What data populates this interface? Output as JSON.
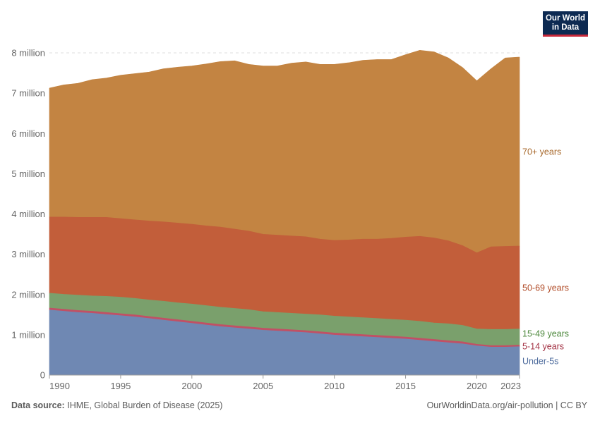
{
  "logo": {
    "line1": "Our World",
    "line2": "in Data"
  },
  "footer": {
    "source_label": "Data source:",
    "source_text": "IHME, Global Burden of Disease (2025)",
    "right_text": "OurWorldinData.org/air-pollution | CC BY"
  },
  "colors": {
    "under5": "#6f88b3",
    "age5_14": "#c15065",
    "age15_49": "#7aa06c",
    "age50_69": "#c25e3a",
    "age70": "#c38442"
  },
  "chart_data": {
    "type": "area",
    "stacked": true,
    "x": [
      1990,
      1991,
      1992,
      1993,
      1994,
      1995,
      1996,
      1997,
      1998,
      1999,
      2000,
      2001,
      2002,
      2003,
      2004,
      2005,
      2006,
      2007,
      2008,
      2009,
      2010,
      2011,
      2012,
      2013,
      2014,
      2015,
      2016,
      2017,
      2018,
      2019,
      2020,
      2021,
      2022,
      2023
    ],
    "x_ticks": [
      1990,
      1995,
      2000,
      2005,
      2010,
      2015,
      2020,
      2023
    ],
    "xlim": [
      1990,
      2023
    ],
    "ylim": [
      0,
      8000000
    ],
    "y_ticks": [
      {
        "value": 0,
        "label": "0"
      },
      {
        "value": 1000000,
        "label": "1 million"
      },
      {
        "value": 2000000,
        "label": "2 million"
      },
      {
        "value": 3000000,
        "label": "3 million"
      },
      {
        "value": 4000000,
        "label": "4 million"
      },
      {
        "value": 5000000,
        "label": "5 million"
      },
      {
        "value": 6000000,
        "label": "6 million"
      },
      {
        "value": 7000000,
        "label": "7 million"
      },
      {
        "value": 8000000,
        "label": "8 million"
      }
    ],
    "grid": "horizontal dashed",
    "series": [
      {
        "name": "Under-5s",
        "color_key": "under5",
        "values": [
          1610000,
          1580000,
          1550000,
          1530000,
          1500000,
          1470000,
          1440000,
          1400000,
          1360000,
          1320000,
          1280000,
          1240000,
          1200000,
          1170000,
          1140000,
          1110000,
          1090000,
          1070000,
          1050000,
          1020000,
          990000,
          970000,
          950000,
          930000,
          910000,
          890000,
          860000,
          830000,
          800000,
          770000,
          720000,
          690000,
          690000,
          700000
        ]
      },
      {
        "name": "5-14 years",
        "color_key": "age5_14",
        "values": [
          50000,
          50000,
          50000,
          50000,
          50000,
          50000,
          50000,
          50000,
          50000,
          50000,
          50000,
          50000,
          50000,
          50000,
          50000,
          50000,
          50000,
          50000,
          50000,
          50000,
          50000,
          50000,
          50000,
          50000,
          50000,
          50000,
          50000,
          50000,
          50000,
          50000,
          40000,
          40000,
          40000,
          40000
        ]
      },
      {
        "name": "15-49 years",
        "color_key": "age15_49",
        "values": [
          370000,
          370000,
          380000,
          380000,
          400000,
          410000,
          410000,
          410000,
          420000,
          420000,
          430000,
          430000,
          430000,
          430000,
          430000,
          410000,
          410000,
          410000,
          410000,
          420000,
          420000,
          420000,
          420000,
          420000,
          420000,
          420000,
          420000,
          410000,
          420000,
          410000,
          380000,
          400000,
          400000,
          400000
        ]
      },
      {
        "name": "50-69 years",
        "color_key": "age50_69",
        "values": [
          1890000,
          1920000,
          1930000,
          1950000,
          1960000,
          1950000,
          1950000,
          1960000,
          1970000,
          1980000,
          1980000,
          1980000,
          1990000,
          1970000,
          1950000,
          1920000,
          1920000,
          1920000,
          1920000,
          1880000,
          1880000,
          1910000,
          1950000,
          1970000,
          2010000,
          2060000,
          2110000,
          2110000,
          2060000,
          1980000,
          1890000,
          2050000,
          2060000,
          2060000
        ]
      },
      {
        "name": "70+ years",
        "color_key": "age70",
        "values": [
          3200000,
          3280000,
          3330000,
          3420000,
          3460000,
          3560000,
          3630000,
          3700000,
          3800000,
          3870000,
          3930000,
          4020000,
          4110000,
          4180000,
          4140000,
          4180000,
          4200000,
          4290000,
          4340000,
          4340000,
          4370000,
          4400000,
          4440000,
          4460000,
          4440000,
          4530000,
          4620000,
          4620000,
          4540000,
          4420000,
          4270000,
          4420000,
          4680000,
          4690000
        ]
      }
    ]
  }
}
